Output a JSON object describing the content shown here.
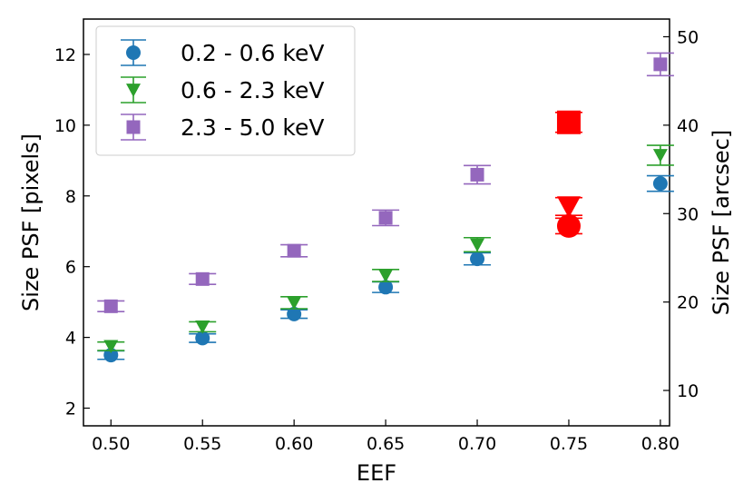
{
  "chart_data": {
    "type": "scatter",
    "xlabel": "EEF",
    "ylabel": "Size PSF [pixels]",
    "ylabel_right": "Size PSF [arcsec]",
    "xlim": [
      0.485,
      0.805
    ],
    "ylim": [
      1.5,
      13.0
    ],
    "ylim_right": [
      6.0,
      52.0
    ],
    "x_ticks": [
      0.5,
      0.55,
      0.6,
      0.65,
      0.7,
      0.75,
      0.8
    ],
    "x_tick_labels": [
      "0.50",
      "0.55",
      "0.60",
      "0.65",
      "0.70",
      "0.75",
      "0.80"
    ],
    "y_ticks": [
      2,
      4,
      6,
      8,
      10,
      12
    ],
    "y_tick_labels": [
      "2",
      "4",
      "6",
      "8",
      "10",
      "12"
    ],
    "y_right_ticks": [
      10,
      20,
      30,
      40,
      50
    ],
    "y_right_tick_labels": [
      "10",
      "20",
      "30",
      "40",
      "50"
    ],
    "grid": false,
    "legend_position": "top-left",
    "series": [
      {
        "name": "0.2 - 0.6 keV",
        "marker": "circle",
        "color": "#1f77b4",
        "x": [
          0.5,
          0.55,
          0.6,
          0.65,
          0.7,
          0.8
        ],
        "y": [
          3.5,
          3.98,
          4.66,
          5.42,
          6.22,
          8.35
        ],
        "err": [
          0.12,
          0.12,
          0.12,
          0.15,
          0.17,
          0.22
        ]
      },
      {
        "name": "0.6 - 2.3 keV",
        "marker": "triangle-down",
        "color": "#2ca02c",
        "x": [
          0.5,
          0.55,
          0.6,
          0.65,
          0.7,
          0.8
        ],
        "y": [
          3.75,
          4.3,
          4.98,
          5.75,
          6.62,
          9.15
        ],
        "err": [
          0.12,
          0.14,
          0.17,
          0.17,
          0.2,
          0.28
        ]
      },
      {
        "name": "2.3 - 5.0 keV",
        "marker": "square",
        "color": "#9467bd",
        "x": [
          0.5,
          0.55,
          0.6,
          0.65,
          0.7,
          0.8
        ],
        "y": [
          4.88,
          5.65,
          6.45,
          7.38,
          8.6,
          11.72
        ],
        "err": [
          0.15,
          0.15,
          0.17,
          0.22,
          0.26,
          0.32
        ]
      }
    ],
    "highlight_points": [
      {
        "series": "0.2 - 0.6 keV",
        "marker": "circle",
        "color": "#ff0000",
        "x": 0.75,
        "y": 7.15,
        "err": 0.22
      },
      {
        "series": "0.6 - 2.3 keV",
        "marker": "triangle-down",
        "color": "#ff0000",
        "x": 0.75,
        "y": 7.7,
        "err": 0.25
      },
      {
        "series": "2.3 - 5.0 keV",
        "marker": "square",
        "color": "#ff0000",
        "x": 0.75,
        "y": 10.08,
        "err": 0.28
      }
    ]
  }
}
